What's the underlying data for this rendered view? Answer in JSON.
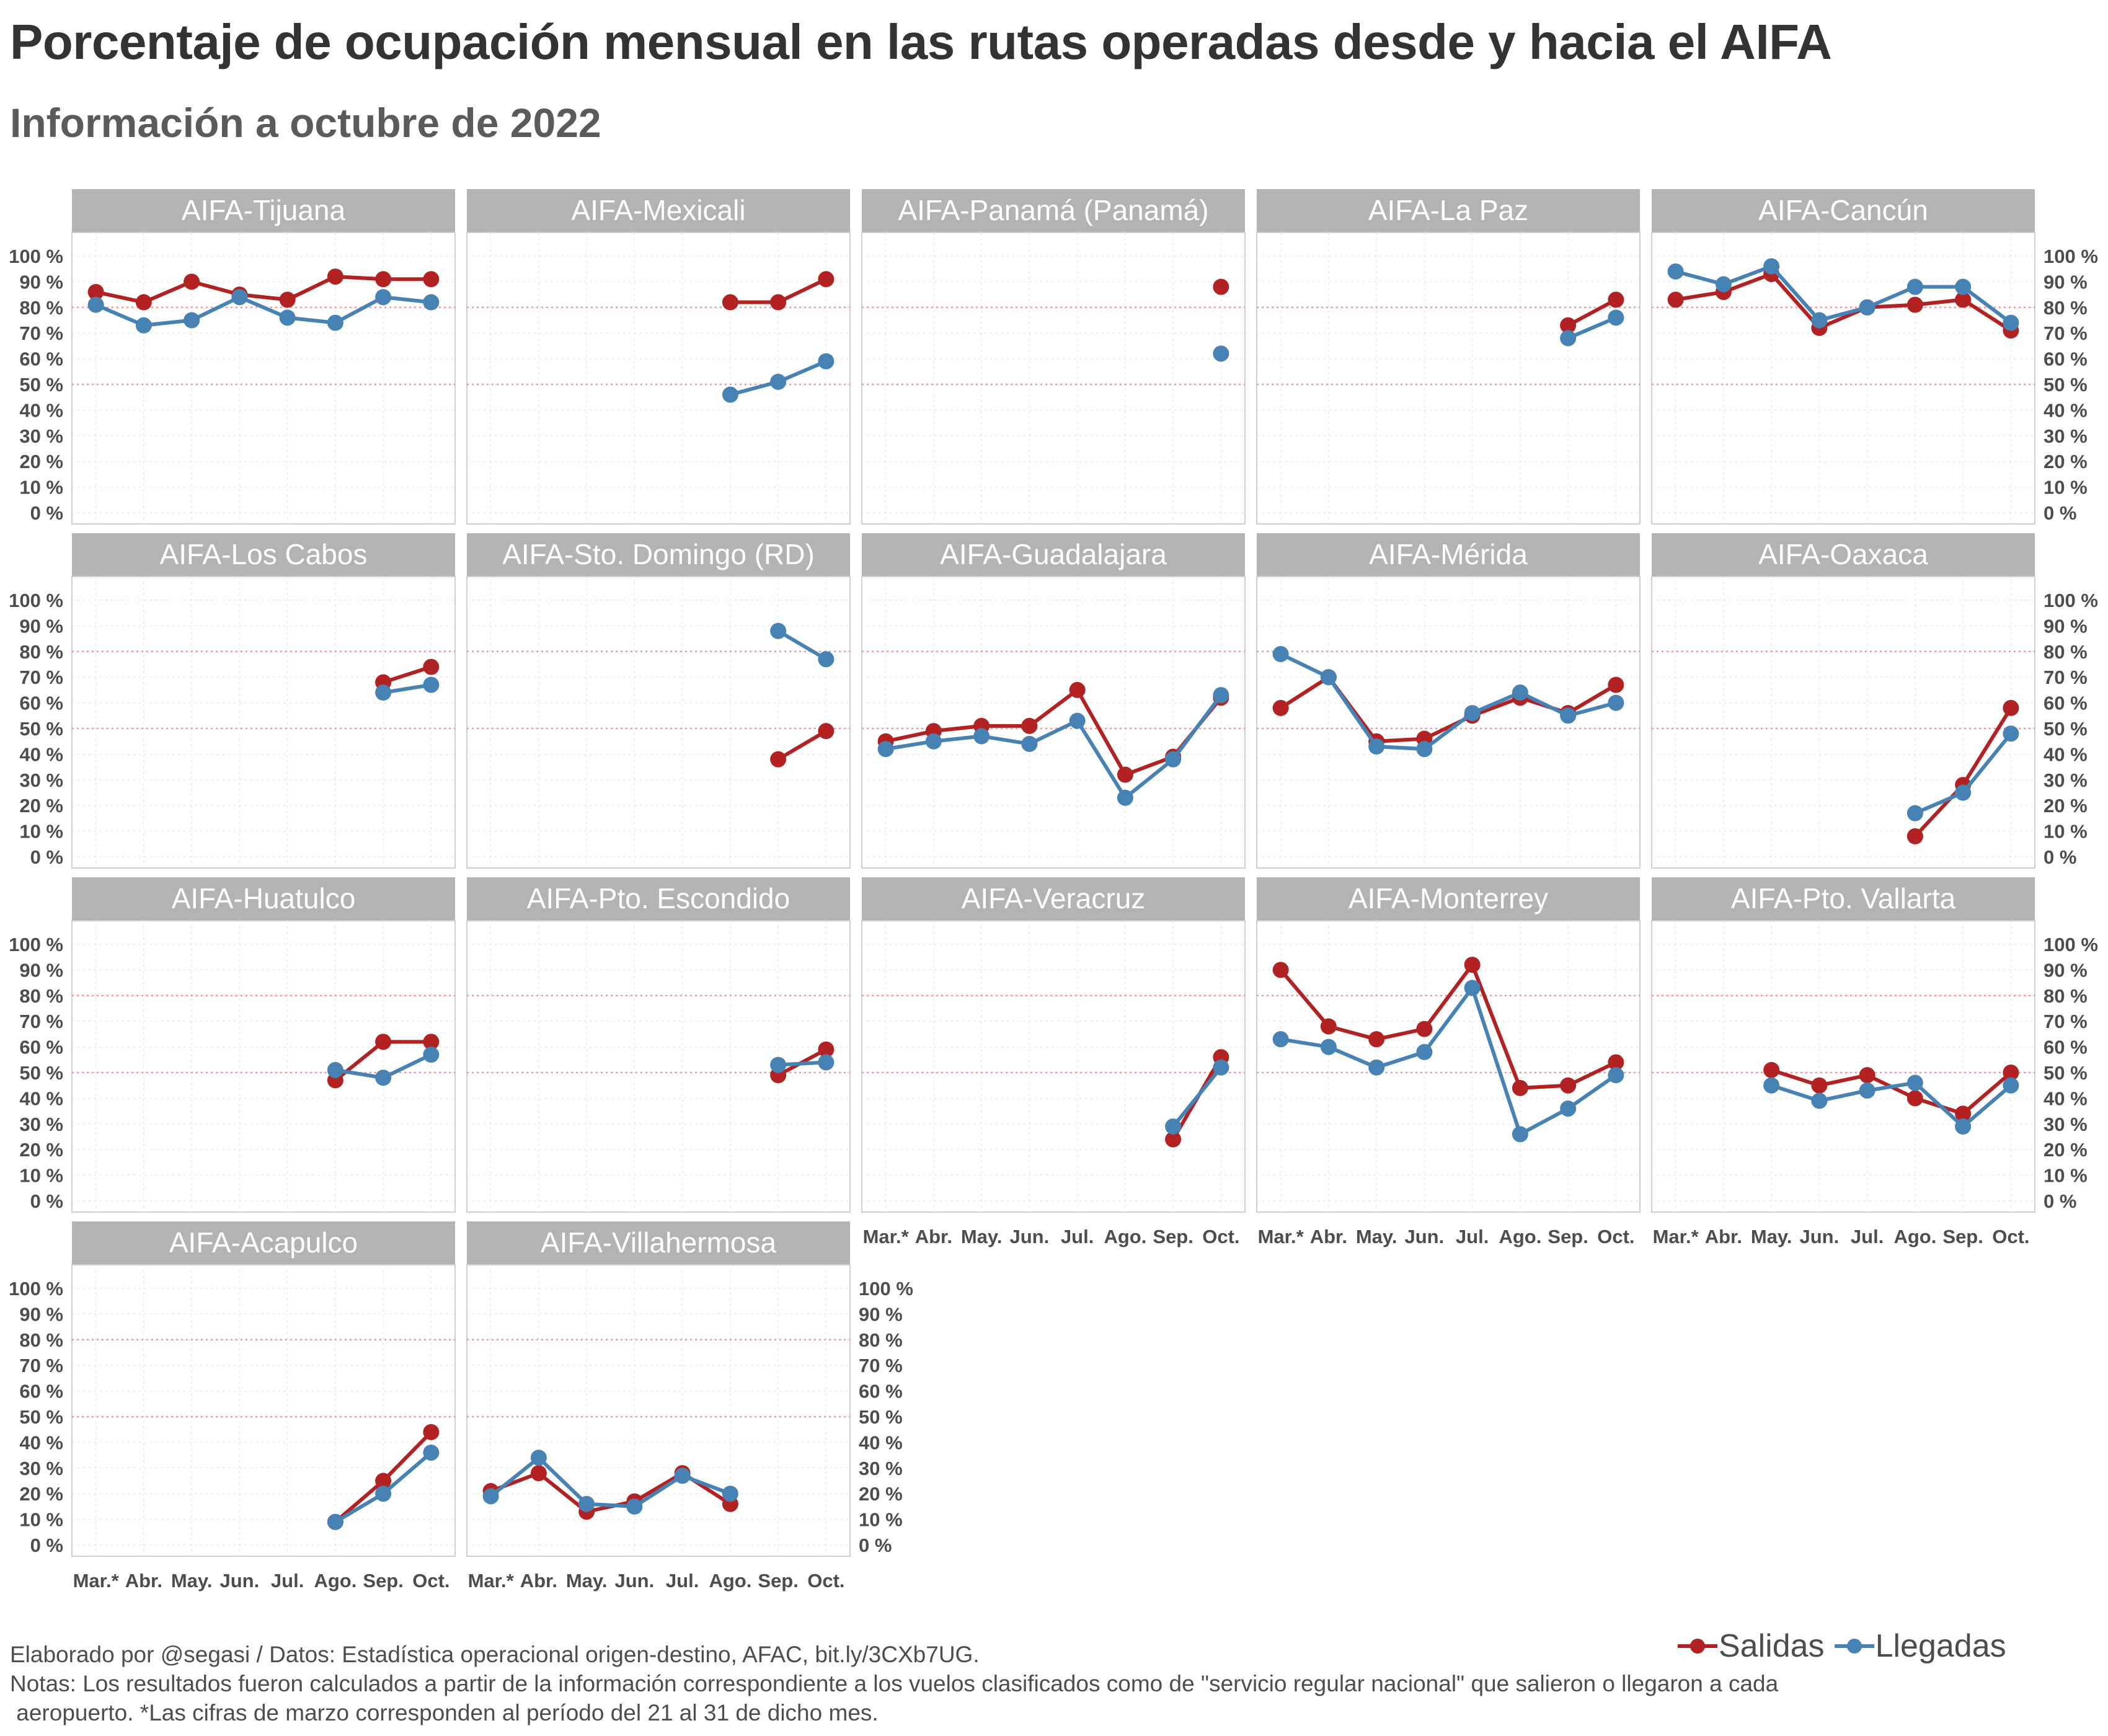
{
  "title": "Porcentaje de ocupación mensual en las rutas operadas desde y hacia el AIFA",
  "subtitle": "Información a octubre de 2022",
  "caption": {
    "line1": "Elaborado por @segasi / Datos: Estadística operacional origen-destino, AFAC, bit.ly/3CXb7UG.",
    "line2": "Notas: Los resultados fueron calculados a partir de la información correspondiente a los vuelos clasificados como de \"servicio regular nacional\" que salieron o llegaron a cada",
    "line3": " aeropuerto. *Las cifras de marzo corresponden al período del 21 al 31 de dicho mes."
  },
  "legend": [
    {
      "label": "Salidas",
      "color": "#b22222"
    },
    {
      "label": "Llegadas",
      "color": "#4682b4"
    }
  ],
  "chart_data": {
    "type": "line",
    "facets": "small multiples, 5 columns",
    "months": [
      "Mar.*",
      "Abr.",
      "May.",
      "Jun.",
      "Jul.",
      "Ago.",
      "Sep.",
      "Oct."
    ],
    "y_ticks": [
      "0 %",
      "10 %",
      "20 %",
      "30 %",
      "40 %",
      "50 %",
      "60 %",
      "70 %",
      "80 %",
      "90 %",
      "100 %"
    ],
    "ylim": [
      0,
      100
    ],
    "reference_lines": [
      50,
      80
    ],
    "grid": true,
    "legend_position": "bottom-right",
    "series_names": [
      "Salidas",
      "Llegadas"
    ],
    "series_colors": {
      "Salidas": "#b22222",
      "Llegadas": "#4682b4"
    },
    "panels": [
      {
        "name": "AIFA-Tijuana",
        "Salidas": [
          86,
          82,
          90,
          85,
          83,
          92,
          91,
          91
        ],
        "Llegadas": [
          81,
          73,
          75,
          84,
          76,
          74,
          84,
          82
        ]
      },
      {
        "name": "AIFA-Mexicali",
        "Salidas": [
          null,
          null,
          null,
          null,
          null,
          82,
          82,
          91
        ],
        "Llegadas": [
          null,
          null,
          null,
          null,
          null,
          46,
          51,
          59
        ]
      },
      {
        "name": "AIFA-Panamá (Panamá)",
        "Salidas": [
          null,
          null,
          null,
          null,
          null,
          null,
          null,
          88
        ],
        "Llegadas": [
          null,
          null,
          null,
          null,
          null,
          null,
          null,
          62
        ]
      },
      {
        "name": "AIFA-La Paz",
        "Salidas": [
          null,
          null,
          null,
          null,
          null,
          null,
          73,
          83
        ],
        "Llegadas": [
          null,
          null,
          null,
          null,
          null,
          null,
          68,
          76
        ]
      },
      {
        "name": "AIFA-Cancún",
        "Salidas": [
          83,
          86,
          93,
          72,
          80,
          81,
          83,
          71
        ],
        "Llegadas": [
          94,
          89,
          96,
          75,
          80,
          88,
          88,
          74
        ]
      },
      {
        "name": "AIFA-Los Cabos",
        "Salidas": [
          null,
          null,
          null,
          null,
          null,
          null,
          68,
          74
        ],
        "Llegadas": [
          null,
          null,
          null,
          null,
          null,
          null,
          64,
          67
        ]
      },
      {
        "name": "AIFA-Sto. Domingo (RD)",
        "Salidas": [
          null,
          null,
          null,
          null,
          null,
          null,
          38,
          49
        ],
        "Llegadas": [
          null,
          null,
          null,
          null,
          null,
          null,
          88,
          77
        ]
      },
      {
        "name": "AIFA-Guadalajara",
        "Salidas": [
          45,
          49,
          51,
          51,
          65,
          32,
          39,
          62
        ],
        "Llegadas": [
          42,
          45,
          47,
          44,
          53,
          23,
          38,
          63
        ]
      },
      {
        "name": "AIFA-Mérida",
        "Salidas": [
          58,
          70,
          45,
          46,
          55,
          62,
          56,
          67
        ],
        "Llegadas": [
          79,
          70,
          43,
          42,
          56,
          64,
          55,
          60
        ]
      },
      {
        "name": "AIFA-Oaxaca",
        "Salidas": [
          null,
          null,
          null,
          null,
          null,
          8,
          28,
          58
        ],
        "Llegadas": [
          null,
          null,
          null,
          null,
          null,
          17,
          25,
          48
        ]
      },
      {
        "name": "AIFA-Huatulco",
        "Salidas": [
          null,
          null,
          null,
          null,
          null,
          47,
          62,
          62
        ],
        "Llegadas": [
          null,
          null,
          null,
          null,
          null,
          51,
          48,
          57
        ]
      },
      {
        "name": "AIFA-Pto. Escondido",
        "Salidas": [
          null,
          null,
          null,
          null,
          null,
          null,
          49,
          59
        ],
        "Llegadas": [
          null,
          null,
          null,
          null,
          null,
          null,
          53,
          54
        ]
      },
      {
        "name": "AIFA-Veracruz",
        "Salidas": [
          null,
          null,
          null,
          null,
          null,
          null,
          24,
          56
        ],
        "Llegadas": [
          null,
          null,
          null,
          null,
          null,
          null,
          29,
          52
        ]
      },
      {
        "name": "AIFA-Monterrey",
        "Salidas": [
          90,
          68,
          63,
          67,
          92,
          44,
          45,
          54
        ],
        "Llegadas": [
          63,
          60,
          52,
          58,
          83,
          26,
          36,
          49
        ]
      },
      {
        "name": "AIFA-Pto. Vallarta",
        "Salidas": [
          null,
          null,
          51,
          45,
          49,
          40,
          34,
          50
        ],
        "Llegadas": [
          null,
          null,
          45,
          39,
          43,
          46,
          29,
          45
        ]
      },
      {
        "name": "AIFA-Acapulco",
        "Salidas": [
          null,
          null,
          null,
          null,
          null,
          9,
          25,
          44
        ],
        "Llegadas": [
          null,
          null,
          null,
          null,
          null,
          9,
          20,
          36
        ]
      },
      {
        "name": "AIFA-Villahermosa",
        "Salidas": [
          21,
          28,
          13,
          17,
          28,
          16,
          null,
          null
        ],
        "Llegadas": [
          19,
          34,
          16,
          15,
          27,
          20,
          null,
          null
        ]
      }
    ]
  }
}
